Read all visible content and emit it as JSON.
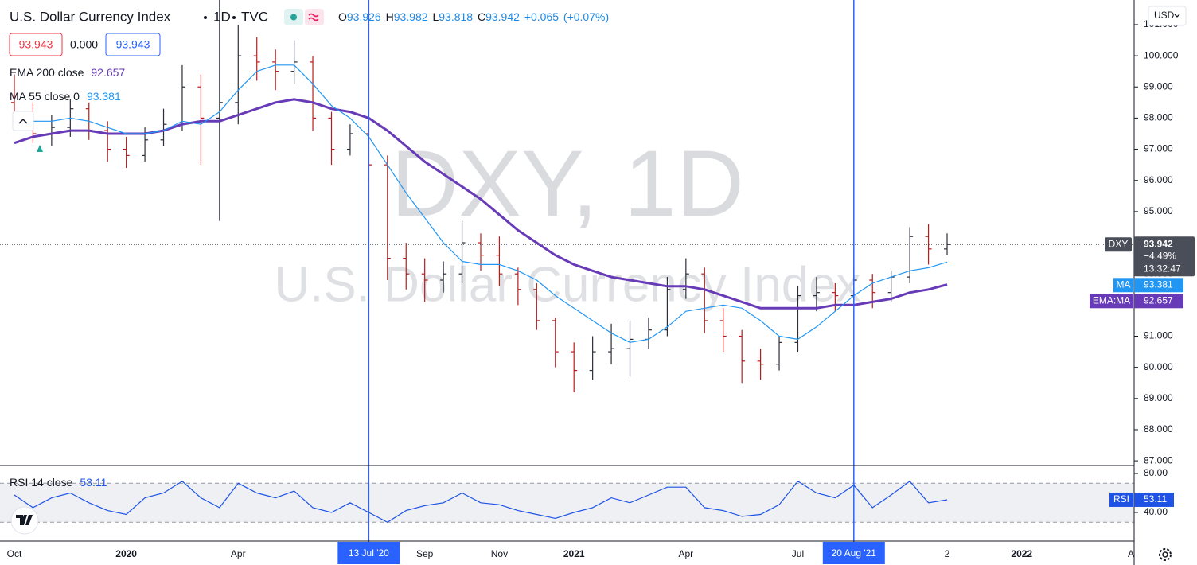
{
  "chart_data": {
    "type": "candlestick",
    "title": "U.S. Dollar Currency Index",
    "interval": "1D",
    "source": "TVC",
    "legend_ohlc": [
      {
        "label": "O",
        "value": 93.926
      },
      {
        "label": "H",
        "value": 93.982
      },
      {
        "label": "L",
        "value": 93.818
      },
      {
        "label": "C",
        "value": 93.942
      }
    ],
    "change": {
      "value": 0.065,
      "label": "+0.065"
    },
    "change_pct": {
      "value": 0.07,
      "label": "(+0.07%)"
    },
    "sell": 93.943,
    "spread": {
      "value": 0,
      "label": "0.000"
    },
    "buy": 93.943,
    "currency": "USD",
    "watermark": {
      "symbol": "DXY, 1D",
      "name": "U.S. Dollar Currency Index"
    },
    "categories": [
      "Oct",
      null,
      null,
      null,
      null,
      null,
      "2020",
      null,
      null,
      null,
      null,
      null,
      "Apr",
      null,
      null,
      null,
      null,
      null,
      null,
      "13 Jul '20",
      null,
      null,
      "Sep",
      null,
      null,
      null,
      "Nov",
      null,
      null,
      null,
      "2021",
      null,
      null,
      null,
      null,
      null,
      "Apr",
      null,
      null,
      null,
      null,
      null,
      "Jul",
      null,
      null,
      "20 Aug '21",
      null,
      null,
      null,
      null,
      "2",
      null,
      null,
      null,
      "2022",
      null,
      null,
      null,
      null,
      null,
      "Ap"
    ],
    "markers": [
      "13 Jul '20",
      "20 Aug '21"
    ],
    "up_color": "#2a2e39",
    "down_color": "#b71c1c",
    "ohlc": {
      "open": [
        98.5,
        98.2,
        97.5,
        97.7,
        98.3,
        97.6,
        97.0,
        96.8,
        97.3,
        97.8,
        99.0,
        98.0,
        98.5,
        100.0,
        99.8,
        99.5,
        99.8,
        98.0,
        97.0,
        97.5,
        96.5,
        93.5,
        93.0,
        92.8,
        93.0,
        94.0,
        93.6,
        93.0,
        92.5,
        91.5,
        90.5,
        89.9,
        90.5,
        90.6,
        90.9,
        91.2,
        92.5,
        93.0,
        91.5,
        91.0,
        90.2,
        90.1,
        90.8,
        92.3,
        92.4,
        92.3,
        92.8,
        92.4,
        92.9,
        94.2,
        93.8,
        null,
        null,
        null,
        null,
        null,
        null,
        null,
        null,
        null,
        null
      ],
      "high": [
        99.4,
        98.5,
        98.1,
        98.6,
        98.5,
        97.9,
        97.4,
        97.7,
        98.3,
        99.7,
        99.4,
        101.8,
        101.0,
        100.6,
        100.2,
        100.5,
        100.0,
        98.2,
        97.8,
        97.9,
        96.8,
        94.0,
        93.5,
        93.4,
        94.7,
        94.3,
        94.2,
        93.2,
        92.7,
        91.6,
        90.8,
        91.0,
        91.4,
        91.5,
        91.6,
        92.9,
        93.5,
        93.2,
        91.9,
        91.2,
        90.6,
        91.0,
        92.6,
        92.9,
        92.7,
        93.2,
        93.0,
        93.1,
        94.5,
        94.6,
        94.3,
        null,
        null,
        null,
        null,
        null,
        null,
        null,
        null,
        null,
        null
      ],
      "low": [
        97.9,
        97.2,
        97.1,
        97.4,
        97.3,
        96.6,
        96.4,
        96.6,
        97.1,
        97.6,
        96.5,
        94.7,
        97.8,
        99.2,
        98.9,
        99.1,
        97.6,
        96.5,
        96.8,
        96.0,
        92.8,
        92.5,
        92.1,
        92.4,
        92.7,
        93.1,
        92.6,
        92.0,
        91.2,
        90.0,
        89.2,
        89.6,
        90.1,
        89.7,
        90.6,
        91.0,
        92.2,
        91.1,
        90.5,
        89.5,
        89.6,
        89.9,
        90.5,
        91.8,
        91.8,
        92.1,
        91.9,
        92.1,
        92.7,
        93.3,
        93.6,
        null,
        null,
        null,
        null,
        null,
        null,
        null,
        null,
        null,
        null
      ],
      "close": [
        98.2,
        97.5,
        97.7,
        98.3,
        97.6,
        97.0,
        96.8,
        97.3,
        97.8,
        99.0,
        98.0,
        98.5,
        100.0,
        99.8,
        99.5,
        99.8,
        98.0,
        97.0,
        97.5,
        96.5,
        93.5,
        93.0,
        92.8,
        93.0,
        94.0,
        93.6,
        93.0,
        92.5,
        91.5,
        90.5,
        89.9,
        90.5,
        90.6,
        90.9,
        91.2,
        92.5,
        93.0,
        91.5,
        91.0,
        90.2,
        90.1,
        90.8,
        92.3,
        92.4,
        92.3,
        92.8,
        92.4,
        92.9,
        94.2,
        93.8,
        93.942,
        null,
        null,
        null,
        null,
        null,
        null,
        null,
        null,
        null,
        null
      ]
    },
    "last_price": {
      "symbol": "DXY",
      "change_pct": {
        "value": -4.49,
        "label": "−4.49%"
      },
      "countdown": "13:32:47",
      "color": "#4a4e59"
    },
    "series": [
      {
        "name": "EMA 200 close",
        "tag": "EMA:MA",
        "color": "#673ab7",
        "values": [
          97.2,
          97.4,
          97.5,
          97.6,
          97.6,
          97.5,
          97.5,
          97.5,
          97.6,
          97.8,
          97.9,
          97.9,
          98.1,
          98.3,
          98.5,
          98.6,
          98.5,
          98.3,
          98.2,
          98.0,
          97.6,
          97.1,
          96.6,
          96.2,
          95.8,
          95.4,
          94.9,
          94.4,
          94.0,
          93.6,
          93.3,
          93.1,
          92.9,
          92.8,
          92.7,
          92.6,
          92.6,
          92.5,
          92.3,
          92.1,
          91.9,
          91.9,
          91.9,
          91.9,
          92.0,
          92.0,
          92.1,
          92.2,
          92.4,
          92.5,
          92.657,
          null,
          null,
          null,
          null,
          null,
          null,
          null,
          null,
          null,
          null
        ]
      },
      {
        "name": "MA 55 close 0",
        "tag": "MA",
        "color": "#2196f3",
        "values": [
          98.1,
          97.9,
          97.9,
          98.0,
          97.9,
          97.7,
          97.5,
          97.5,
          97.6,
          97.9,
          97.8,
          98.2,
          98.9,
          99.5,
          99.7,
          99.7,
          99.1,
          98.4,
          98.0,
          97.4,
          96.5,
          95.6,
          94.8,
          94.0,
          93.4,
          93.3,
          93.3,
          93.1,
          92.8,
          92.3,
          91.9,
          91.5,
          91.1,
          90.8,
          90.9,
          91.3,
          91.8,
          91.9,
          92.0,
          91.9,
          91.5,
          91.0,
          90.9,
          91.3,
          91.8,
          92.3,
          92.7,
          92.9,
          93.1,
          93.2,
          93.381,
          null,
          null,
          null,
          null,
          null,
          null,
          null,
          null,
          null,
          null
        ]
      }
    ],
    "ylim": [
      86.85,
      101.79
    ],
    "yticks": [
      {
        "value": 87,
        "label": "87.000"
      },
      {
        "value": 88,
        "label": "88.000"
      },
      {
        "value": 89,
        "label": "89.000"
      },
      {
        "value": 90,
        "label": "90.000"
      },
      {
        "value": 91,
        "label": "91.000"
      },
      {
        "value": 92,
        "label": "92.000"
      },
      {
        "value": 93,
        "label": "93.000"
      },
      {
        "value": 94,
        "label": "94.000"
      },
      {
        "value": 95,
        "label": "95.000"
      },
      {
        "value": 96,
        "label": "96.000"
      },
      {
        "value": 97,
        "label": "97.000"
      },
      {
        "value": 98,
        "label": "98.000"
      },
      {
        "value": 99,
        "label": "99.000"
      },
      {
        "value": 100,
        "label": "100.000"
      },
      {
        "value": 101,
        "label": "101.000"
      }
    ],
    "grid": false,
    "rsi": {
      "name": "RSI 14 close",
      "tag": "RSI",
      "color": "#1e53e5",
      "values": [
        58,
        45,
        55,
        60,
        50,
        42,
        38,
        55,
        60,
        72,
        55,
        45,
        70,
        60,
        55,
        62,
        45,
        40,
        50,
        40,
        30,
        42,
        47,
        50,
        60,
        50,
        48,
        42,
        38,
        34,
        40,
        45,
        55,
        50,
        58,
        66,
        66,
        45,
        42,
        36,
        38,
        48,
        72,
        60,
        55,
        68,
        45,
        58,
        72,
        50,
        53.11,
        null,
        null,
        null,
        null,
        null,
        null,
        null,
        null,
        null,
        null
      ],
      "ylim": [
        10.6,
        88.2
      ],
      "yticks": [
        {
          "value": 80,
          "label": "80.00"
        },
        {
          "value": 40,
          "label": "40.00"
        }
      ],
      "band": [
        30,
        70
      ]
    }
  }
}
